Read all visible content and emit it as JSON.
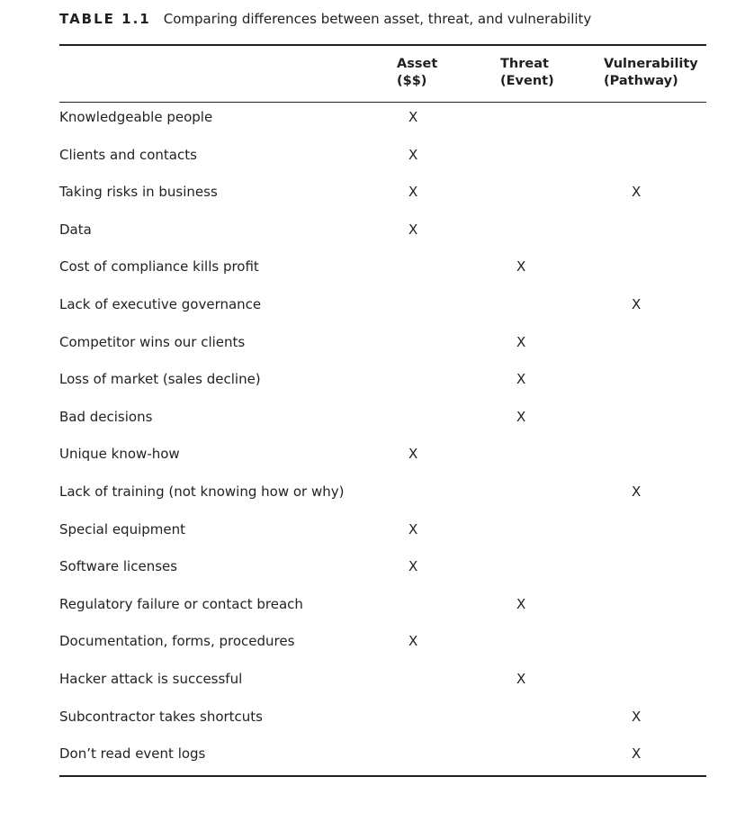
{
  "caption": {
    "label": "TABLE 1.1",
    "text": "Comparing differences between asset, threat, and vulnerability"
  },
  "columns": {
    "asset": [
      "Asset",
      "($$)"
    ],
    "threat": [
      "Threat",
      "(Event)"
    ],
    "vulnerability": [
      "Vulnerability",
      "(Pathway)"
    ]
  },
  "rows": [
    {
      "label": "Knowledgeable people",
      "asset": "X",
      "threat": "",
      "vulnerability": ""
    },
    {
      "label": "Clients and contacts",
      "asset": "X",
      "threat": "",
      "vulnerability": ""
    },
    {
      "label": "Taking risks in business",
      "asset": "X",
      "threat": "",
      "vulnerability": "X"
    },
    {
      "label": "Data",
      "asset": "X",
      "threat": "",
      "vulnerability": ""
    },
    {
      "label": "Cost of compliance kills profit",
      "asset": "",
      "threat": "X",
      "vulnerability": ""
    },
    {
      "label": "Lack of executive governance",
      "asset": "",
      "threat": "",
      "vulnerability": "X"
    },
    {
      "label": "Competitor wins our clients",
      "asset": "",
      "threat": "X",
      "vulnerability": ""
    },
    {
      "label": "Loss of market (sales decline)",
      "asset": "",
      "threat": "X",
      "vulnerability": ""
    },
    {
      "label": "Bad decisions",
      "asset": "",
      "threat": "X",
      "vulnerability": ""
    },
    {
      "label": "Unique know-how",
      "asset": "X",
      "threat": "",
      "vulnerability": ""
    },
    {
      "label": "Lack of training (not knowing how or why)",
      "asset": "",
      "threat": "",
      "vulnerability": "X"
    },
    {
      "label": "Special equipment",
      "asset": "X",
      "threat": "",
      "vulnerability": ""
    },
    {
      "label": "Software licenses",
      "asset": "X",
      "threat": "",
      "vulnerability": ""
    },
    {
      "label": "Regulatory failure or contact breach",
      "asset": "",
      "threat": "X",
      "vulnerability": ""
    },
    {
      "label": "Documentation, forms, procedures",
      "asset": "X",
      "threat": "",
      "vulnerability": ""
    },
    {
      "label": "Hacker attack is successful",
      "asset": "",
      "threat": "X",
      "vulnerability": ""
    },
    {
      "label": "Subcontractor takes shortcuts",
      "asset": "",
      "threat": "",
      "vulnerability": "X"
    },
    {
      "label": "Don’t read event logs",
      "asset": "",
      "threat": "",
      "vulnerability": "X"
    }
  ]
}
